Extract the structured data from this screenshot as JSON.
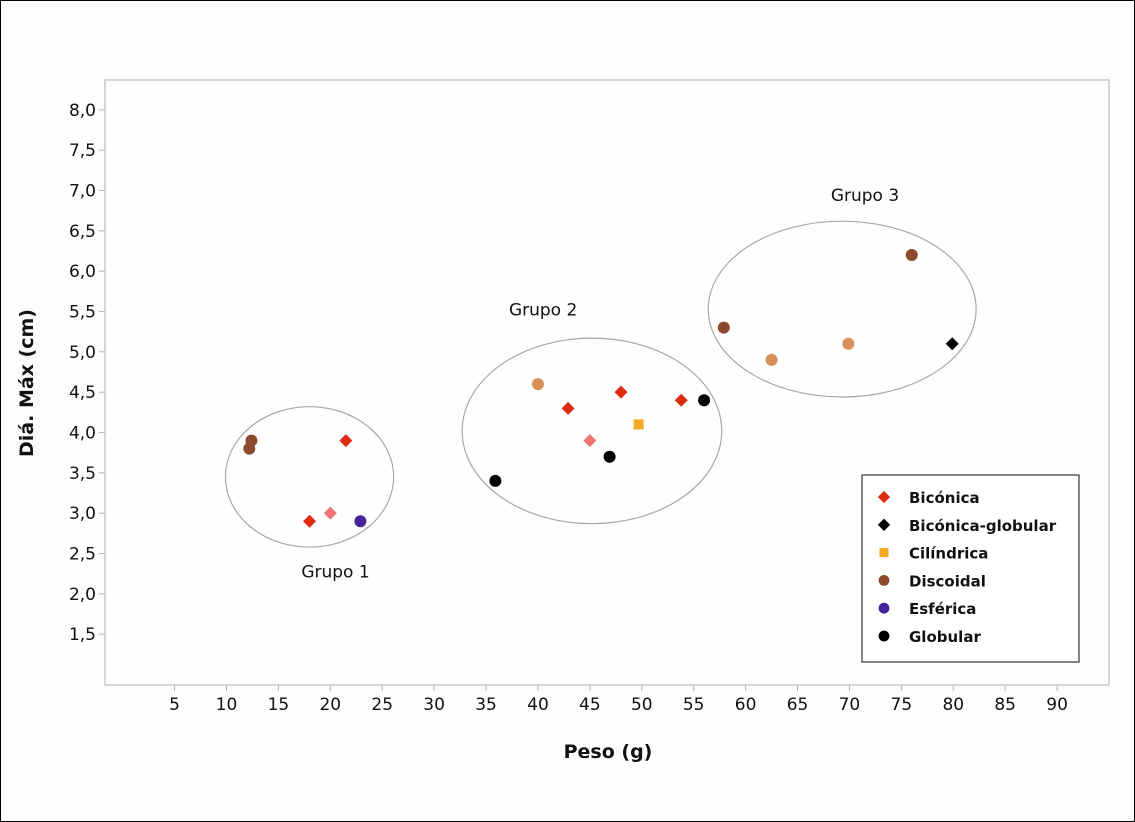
{
  "chart_data": {
    "type": "scatter",
    "title": "",
    "xlabel": "Peso (g)",
    "ylabel": "Diá. Máx (cm)",
    "xlim": [
      -1.7,
      95
    ],
    "ylim": [
      0.87,
      8.37
    ],
    "xticks": [
      {
        "value": 5,
        "label": "5"
      },
      {
        "value": 10,
        "label": "10"
      },
      {
        "value": 15,
        "label": "15"
      },
      {
        "value": 20,
        "label": "20"
      },
      {
        "value": 25,
        "label": "25"
      },
      {
        "value": 30,
        "label": "30"
      },
      {
        "value": 35,
        "label": "35"
      },
      {
        "value": 40,
        "label": "40"
      },
      {
        "value": 45,
        "label": "45"
      },
      {
        "value": 50,
        "label": "50"
      },
      {
        "value": 55,
        "label": "55"
      },
      {
        "value": 60,
        "label": "60"
      },
      {
        "value": 65,
        "label": "65"
      },
      {
        "value": 70,
        "label": "70"
      },
      {
        "value": 75,
        "label": "75"
      },
      {
        "value": 80,
        "label": "80"
      },
      {
        "value": 85,
        "label": "85"
      },
      {
        "value": 90,
        "label": "90"
      }
    ],
    "yticks": [
      {
        "value": 1.5,
        "label": "1,5"
      },
      {
        "value": 2.0,
        "label": "2,0"
      },
      {
        "value": 2.5,
        "label": "2,5"
      },
      {
        "value": 3.0,
        "label": "3,0"
      },
      {
        "value": 3.5,
        "label": "3,5"
      },
      {
        "value": 4.0,
        "label": "4,0"
      },
      {
        "value": 4.5,
        "label": "4,5"
      },
      {
        "value": 5.0,
        "label": "5,0"
      },
      {
        "value": 5.5,
        "label": "5,5"
      },
      {
        "value": 6.0,
        "label": "6,0"
      },
      {
        "value": 6.5,
        "label": "6,5"
      },
      {
        "value": 7.0,
        "label": "7,0"
      },
      {
        "value": 7.5,
        "label": "7,5"
      },
      {
        "value": 8.0,
        "label": "8,0"
      }
    ],
    "grid": false,
    "legend_position": "bottom-right",
    "series": [
      {
        "name": "Bicónica",
        "marker": "diamond",
        "color": "#dd2c0e",
        "points": [
          [
            21.5,
            3.9
          ],
          [
            18.0,
            2.9
          ],
          [
            42.9,
            4.3
          ],
          [
            48.0,
            4.5
          ],
          [
            53.8,
            4.4
          ]
        ]
      },
      {
        "name": "Bicónica-globular",
        "marker": "diamond",
        "color": "#000000",
        "points": [
          [
            79.9,
            5.1
          ]
        ]
      },
      {
        "name": "Cilíndrica",
        "marker": "square",
        "color": "#f7a823",
        "points": [
          [
            49.7,
            4.1
          ]
        ]
      },
      {
        "name": "Discoidal",
        "marker": "circle",
        "color": "#8b4a2b",
        "points": [
          [
            12.4,
            3.9
          ],
          [
            12.2,
            3.8
          ],
          [
            57.9,
            5.3
          ],
          [
            76.0,
            6.2
          ]
        ]
      },
      {
        "name": "Esférica",
        "marker": "circle",
        "color": "#45249a",
        "points": [
          [
            22.9,
            2.9
          ]
        ]
      },
      {
        "name": "Globular",
        "marker": "circle",
        "color": "#000000",
        "points": [
          [
            46.9,
            3.7
          ],
          [
            35.9,
            3.4
          ],
          [
            56.0,
            4.4
          ]
        ]
      }
    ],
    "extra_points": [
      {
        "marker": "diamond",
        "color": "#ef7373",
        "points": [
          [
            20.0,
            3.0
          ],
          [
            45.0,
            3.9
          ]
        ]
      },
      {
        "marker": "circle",
        "color": "#d89058",
        "points": [
          [
            40.0,
            4.6
          ],
          [
            62.5,
            4.9
          ],
          [
            69.9,
            5.1
          ]
        ]
      }
    ],
    "annotations": [
      {
        "text": "Grupo 1"
      },
      {
        "text": "Grupo 2"
      },
      {
        "text": "Grupo 3"
      }
    ]
  }
}
